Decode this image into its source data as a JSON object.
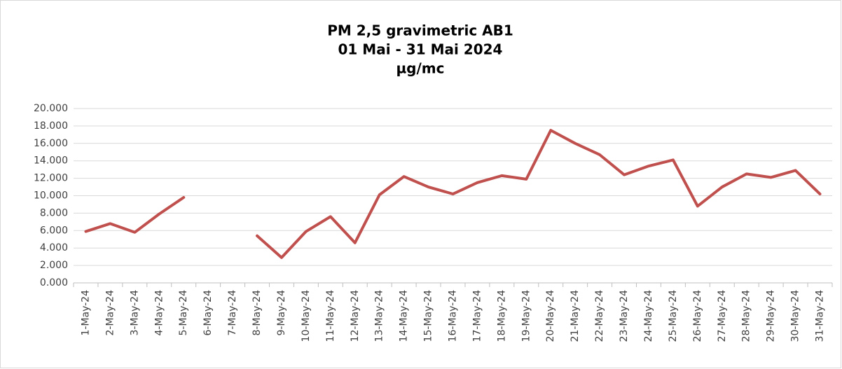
{
  "chart_data": {
    "type": "line",
    "title": [
      "PM 2,5 gravimetric AB1",
      "01 Mai  - 31 Mai 2024",
      "µg/mc"
    ],
    "categories": [
      "1-May-24",
      "2-May-24",
      "3-May-24",
      "4-May-24",
      "5-May-24",
      "6-May-24",
      "7-May-24",
      "8-May-24",
      "9-May-24",
      "10-May-24",
      "11-May-24",
      "12-May-24",
      "13-May-24",
      "14-May-24",
      "15-May-24",
      "16-May-24",
      "17-May-24",
      "18-May-24",
      "19-May-24",
      "20-May-24",
      "21-May-24",
      "22-May-24",
      "23-May-24",
      "24-May-24",
      "25-May-24",
      "26-May-24",
      "27-May-24",
      "28-May-24",
      "29-May-24",
      "30-May-24",
      "31-May-24"
    ],
    "values": [
      5.9,
      6.8,
      5.8,
      7.9,
      9.8,
      null,
      null,
      5.4,
      2.9,
      5.9,
      7.6,
      4.6,
      10.1,
      12.2,
      11.0,
      10.2,
      11.5,
      12.3,
      11.9,
      17.5,
      16.0,
      14.7,
      12.4,
      13.4,
      14.1,
      8.8,
      11.0,
      12.5,
      12.1,
      12.9,
      10.2
    ],
    "color": "#c0504d",
    "ylim": [
      0,
      20
    ],
    "yticks": [
      {
        "value": 0,
        "label": "0.000"
      },
      {
        "value": 2,
        "label": "2.000"
      },
      {
        "value": 4,
        "label": "4.000"
      },
      {
        "value": 6,
        "label": "6.000"
      },
      {
        "value": 8,
        "label": "8.000"
      },
      {
        "value": 10,
        "label": "10.000"
      },
      {
        "value": 12,
        "label": "12.000"
      },
      {
        "value": 14,
        "label": "14.000"
      },
      {
        "value": 16,
        "label": "16.000"
      },
      {
        "value": 18,
        "label": "18.000"
      },
      {
        "value": 20,
        "label": "20.000"
      }
    ],
    "grid": true
  }
}
